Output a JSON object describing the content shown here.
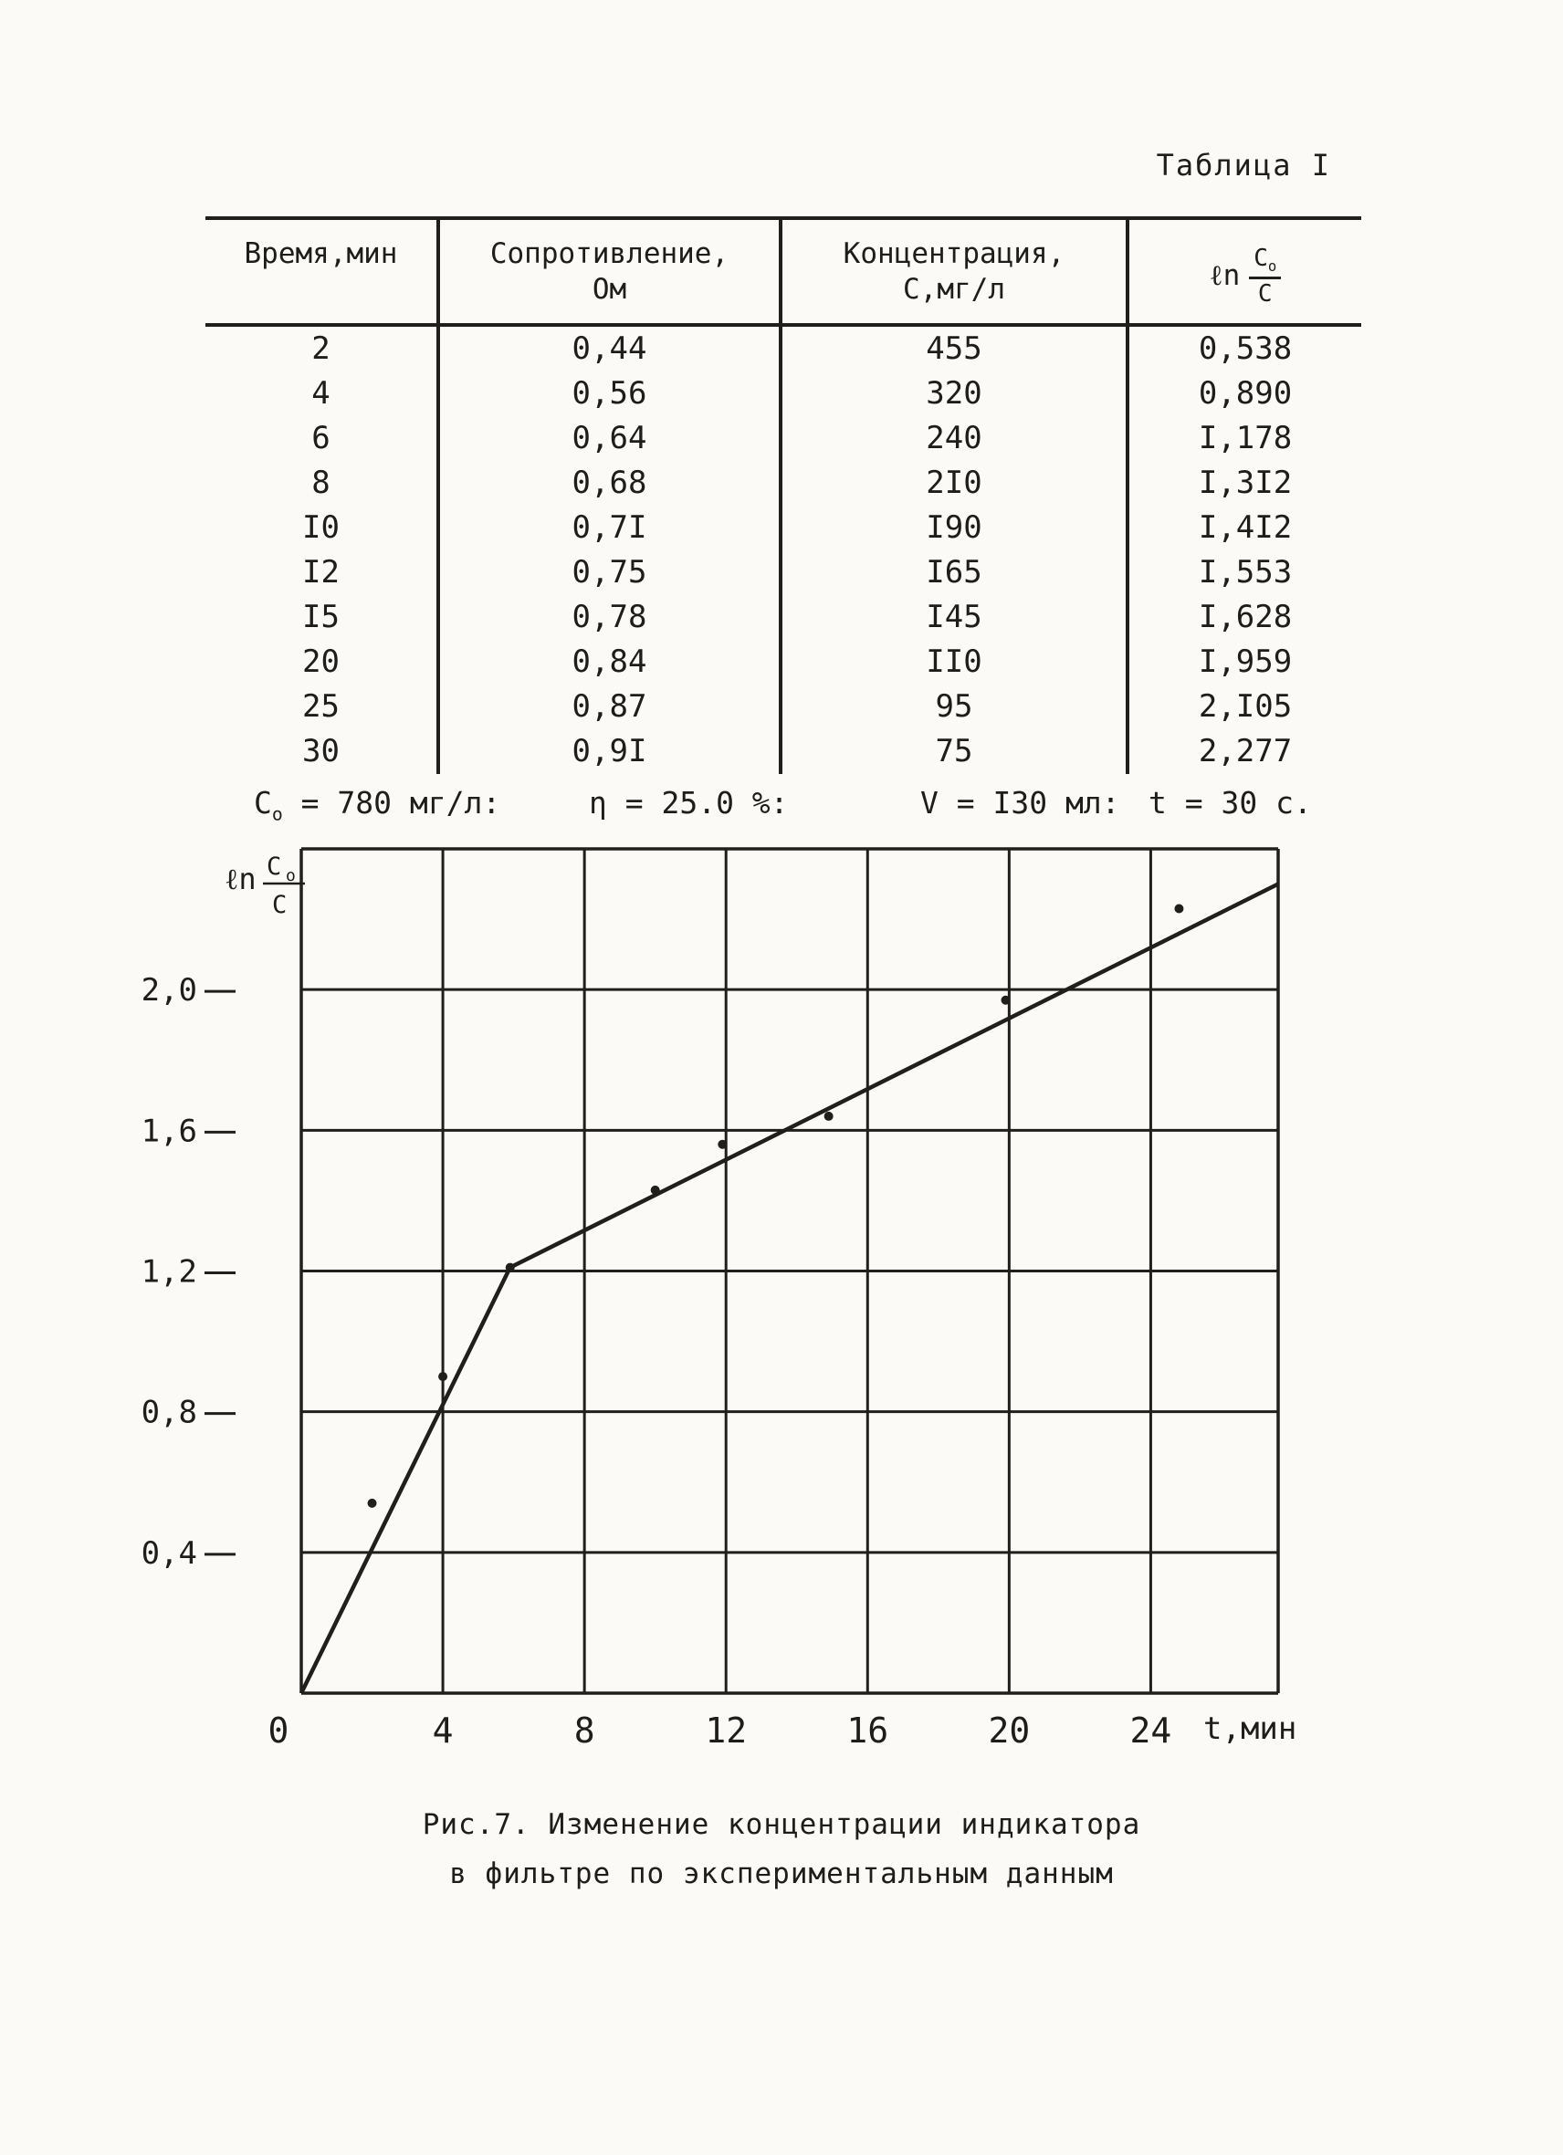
{
  "page": {
    "table_label": "Таблица I"
  },
  "table": {
    "headers": {
      "col1": "Время,мин",
      "col2_line1": "Сопротивление,",
      "col2_line2": "Ом",
      "col3_line1": "Концентрация,",
      "col3_line2": "С,мг/л",
      "col4_fn": "ℓn",
      "col4_num": "C",
      "col4_num_sub": "o",
      "col4_den": "C"
    },
    "rows": [
      [
        "2",
        "0,44",
        "455",
        "0,538"
      ],
      [
        "4",
        "0,56",
        "320",
        "0,890"
      ],
      [
        "6",
        "0,64",
        "240",
        "I,178"
      ],
      [
        "8",
        "0,68",
        "2I0",
        "I,3I2"
      ],
      [
        "I0",
        "0,7I",
        "I90",
        "I,4I2"
      ],
      [
        "I2",
        "0,75",
        "I65",
        "I,553"
      ],
      [
        "I5",
        "0,78",
        "I45",
        "I,628"
      ],
      [
        "20",
        "0,84",
        "II0",
        "I,959"
      ],
      [
        "25",
        "0,87",
        "95",
        "2,I05"
      ],
      [
        "30",
        "0,9I",
        "75",
        "2,277"
      ]
    ]
  },
  "parameters": {
    "c0_base": "C",
    "c0_sub": "o",
    "c0_rest": " = 780 мг/л:",
    "eta": "η = 25.0 %:",
    "v": "V = I30 мл:",
    "t": "t = 30 с."
  },
  "figure": {
    "caption_line1": "Рис.7. Изменение концентрации индикатора",
    "caption_line2": "в фильтре по экспериментальным данным"
  },
  "chart_data": {
    "type": "scatter",
    "title": "",
    "xlabel": "t,мин",
    "ylabel": "ln Co/C",
    "ylabel_fn": "ℓn",
    "ylabel_num": "C",
    "ylabel_num_sub": "o",
    "ylabel_den": "C",
    "xlim": [
      0,
      27.6
    ],
    "ylim": [
      0,
      2.4
    ],
    "grid": true,
    "x_gridlines": [
      4,
      8,
      12,
      16,
      20,
      24
    ],
    "y_gridlines": [
      0.4,
      0.8,
      1.2,
      1.6,
      2.0
    ],
    "x_tick_labels": [
      {
        "v": 0,
        "label": "0"
      },
      {
        "v": 4,
        "label": "4"
      },
      {
        "v": 8,
        "label": "8"
      },
      {
        "v": 12,
        "label": "12"
      },
      {
        "v": 16,
        "label": "16"
      },
      {
        "v": 20,
        "label": "20"
      },
      {
        "v": 24,
        "label": "24"
      }
    ],
    "y_tick_labels": [
      {
        "v": 0.4,
        "label": "0,4"
      },
      {
        "v": 0.8,
        "label": "0,8"
      },
      {
        "v": 1.2,
        "label": "1,2"
      },
      {
        "v": 1.6,
        "label": "1,6"
      },
      {
        "v": 2.0,
        "label": "2,0"
      }
    ],
    "points": [
      [
        2.0,
        0.54
      ],
      [
        4.0,
        0.9
      ],
      [
        5.9,
        1.21
      ],
      [
        10.0,
        1.43
      ],
      [
        11.9,
        1.56
      ],
      [
        14.9,
        1.64
      ],
      [
        19.9,
        1.97
      ],
      [
        24.8,
        2.23
      ]
    ],
    "fit_line": [
      [
        0,
        0
      ],
      [
        5.9,
        1.21
      ],
      [
        27.6,
        2.3
      ]
    ]
  }
}
